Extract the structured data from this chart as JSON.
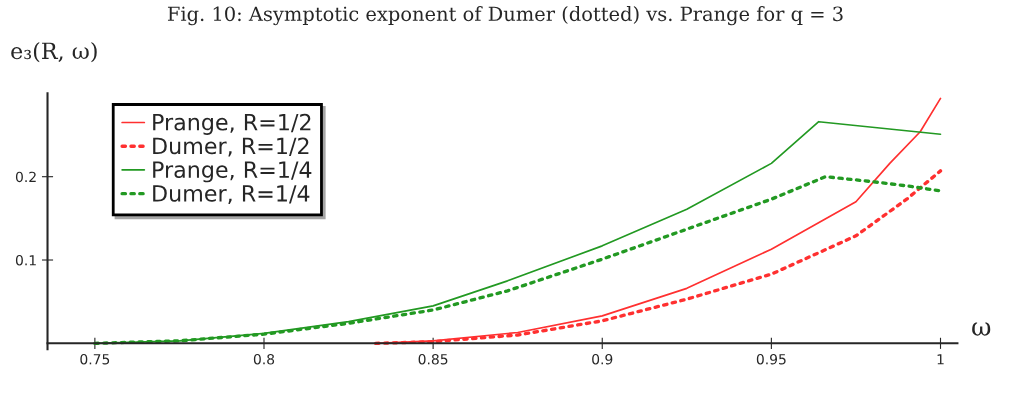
{
  "chart_data": {
    "type": "line",
    "title": "Fig. 10: Asymptotic exponent of Dumer (dotted) vs. Prange for q = 3",
    "xlabel": "ω",
    "ylabel": "e₃(R, ω)",
    "xlim": [
      0.736,
      1.005
    ],
    "ylim": [
      -0.007,
      0.3
    ],
    "xticks": [
      0.75,
      0.8,
      0.85,
      0.9,
      0.95,
      1
    ],
    "yticks": [
      0.1,
      0.2
    ],
    "legend": "top left",
    "grid": false,
    "marker": "none",
    "series": [
      {
        "name": "Prange, R=1/2",
        "color": "#ff3030",
        "line_style": "solid",
        "x": [
          0.833,
          0.85,
          0.875,
          0.9,
          0.925,
          0.95,
          0.975,
          0.985,
          0.994,
          1
        ],
        "values": [
          0,
          0.003,
          0.013,
          0.033,
          0.066,
          0.113,
          0.17,
          0.216,
          0.254,
          0.294
        ]
      },
      {
        "name": "Dumer, R=1/2",
        "color": "#ff3030",
        "line_style": "dotted",
        "x": [
          0.833,
          0.85,
          0.875,
          0.9,
          0.925,
          0.95,
          0.975,
          0.99,
          1
        ],
        "values": [
          0,
          0.002,
          0.01,
          0.027,
          0.053,
          0.083,
          0.129,
          0.173,
          0.207
        ]
      },
      {
        "name": "Prange, R=1/4",
        "color": "#229922",
        "line_style": "solid",
        "x": [
          0.75,
          0.775,
          0.8,
          0.825,
          0.85,
          0.872,
          0.9,
          0.925,
          0.95,
          0.964,
          1
        ],
        "values": [
          0,
          0.003,
          0.012,
          0.026,
          0.045,
          0.075,
          0.117,
          0.161,
          0.216,
          0.266,
          0.251
        ]
      },
      {
        "name": "Dumer, R=1/4",
        "color": "#229922",
        "line_style": "dotted",
        "x": [
          0.75,
          0.775,
          0.8,
          0.825,
          0.85,
          0.872,
          0.9,
          0.925,
          0.95,
          0.966,
          0.98,
          0.99,
          1
        ],
        "values": [
          0,
          0.003,
          0.011,
          0.024,
          0.04,
          0.063,
          0.101,
          0.137,
          0.173,
          0.2,
          0.194,
          0.189,
          0.183
        ]
      }
    ]
  }
}
